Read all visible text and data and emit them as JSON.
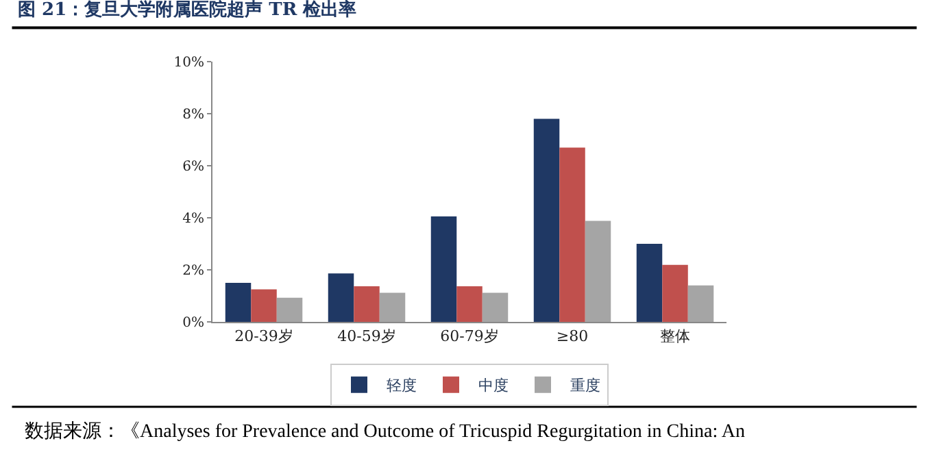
{
  "chart_data": {
    "type": "bar",
    "title": "图 21：复旦大学附属医院超声 TR 检出率",
    "categories": [
      "20-39岁",
      "40-59岁",
      "60-79岁",
      "≥80",
      "整体"
    ],
    "series": [
      {
        "name": "轻度",
        "color": "#1f3864",
        "values": [
          1.5,
          1.86,
          4.05,
          7.8,
          3.0
        ]
      },
      {
        "name": "中度",
        "color": "#c0504d",
        "values": [
          1.25,
          1.37,
          1.37,
          6.7,
          2.19
        ]
      },
      {
        "name": "重度",
        "color": "#a5a5a5",
        "values": [
          0.93,
          1.12,
          1.12,
          3.88,
          1.4
        ]
      }
    ],
    "ylim": [
      0,
      10
    ],
    "yticks": [
      {
        "value": 0,
        "label": "0%"
      },
      {
        "value": 2,
        "label": "2%"
      },
      {
        "value": 4,
        "label": "4%"
      },
      {
        "value": 6,
        "label": "6%"
      },
      {
        "value": 8,
        "label": "8%"
      },
      {
        "value": 10,
        "label": "10%"
      }
    ],
    "legend": "bottom",
    "annotations": [
      "数据来源：《Analyses for Prevalence and Outcome of Tricuspid Regurgitation in China: An"
    ]
  }
}
